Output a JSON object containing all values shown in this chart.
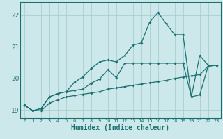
{
  "xlabel": "Humidex (Indice chaleur)",
  "bg_color": "#cce8ea",
  "grid_color": "#aacfd2",
  "line_color": "#1a7070",
  "xlim": [
    -0.5,
    23.5
  ],
  "ylim": [
    18.75,
    22.4
  ],
  "yticks": [
    19,
    20,
    21,
    22
  ],
  "xticks": [
    0,
    1,
    2,
    3,
    4,
    5,
    6,
    7,
    8,
    9,
    10,
    11,
    12,
    13,
    14,
    15,
    16,
    17,
    18,
    19,
    20,
    21,
    22,
    23
  ],
  "s1_y": [
    19.15,
    18.98,
    18.98,
    19.22,
    19.32,
    19.42,
    19.46,
    19.5,
    19.54,
    19.58,
    19.66,
    19.7,
    19.74,
    19.78,
    19.82,
    19.86,
    19.9,
    19.94,
    20.0,
    20.04,
    20.08,
    20.12,
    20.38,
    20.42
  ],
  "s2_y": [
    19.15,
    18.98,
    19.05,
    19.42,
    19.52,
    19.58,
    19.62,
    19.66,
    19.85,
    19.98,
    20.28,
    20.02,
    20.48,
    20.48,
    20.48,
    20.48,
    20.48,
    20.48,
    20.48,
    20.48,
    19.42,
    19.48,
    20.38,
    20.42
  ],
  "s3_y": [
    19.15,
    18.98,
    19.05,
    19.42,
    19.52,
    19.58,
    19.88,
    20.05,
    20.32,
    20.52,
    20.58,
    20.52,
    20.72,
    21.05,
    21.12,
    21.78,
    22.08,
    21.72,
    21.38,
    21.38,
    19.42,
    20.72,
    20.42,
    20.42
  ]
}
